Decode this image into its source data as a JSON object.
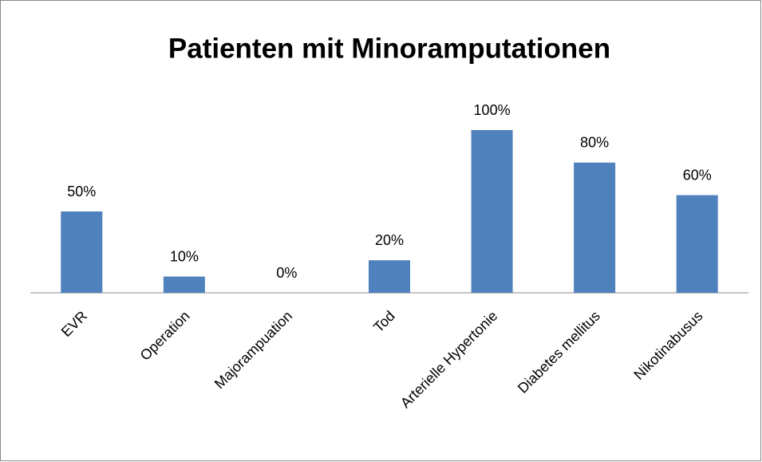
{
  "chart_data": {
    "type": "bar",
    "title": "Patienten mit Minoramputationen",
    "categories": [
      "EVR",
      "Operation",
      "Majorampuation",
      "Tod",
      "Arterielle Hypertonie",
      "Diabetes mellitus",
      "Nikotinabusus"
    ],
    "values": [
      50,
      10,
      0,
      20,
      100,
      80,
      60
    ],
    "value_labels": [
      "50%",
      "10%",
      "0%",
      "20%",
      "100%",
      "80%",
      "60%"
    ],
    "color": "#4f81bd"
  }
}
